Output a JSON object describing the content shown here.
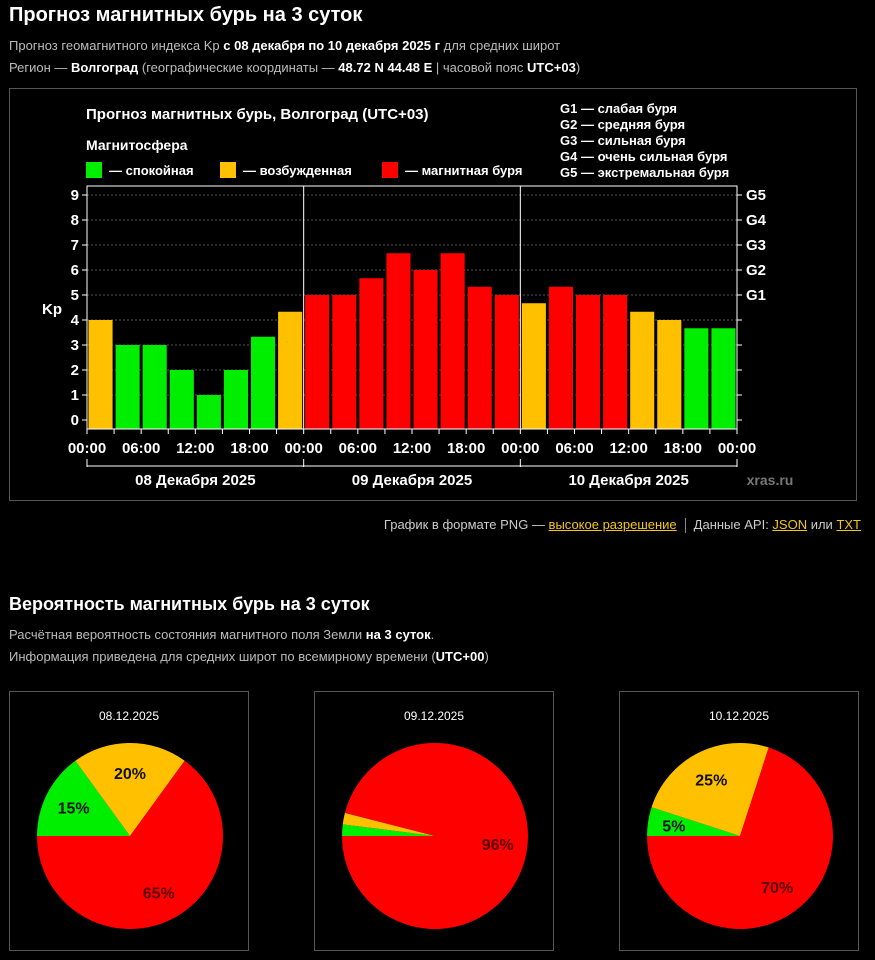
{
  "header": {
    "title": "Прогноз магнитных бурь на 3 суток",
    "line1_pre": "Прогноз геомагнитного индекса Kp ",
    "line1_bold": "с 08 декабря по 10 декабря 2025 г",
    "line1_post": " для средних широт",
    "line2_pre": "Регион — ",
    "line2_region": "Волгоград",
    "line2_mid": " (географические координаты — ",
    "line2_coords": "48.72 N 44.48 E",
    "line2_mid2": " | часовой пояс ",
    "line2_tz": "UTC+03",
    "line2_post": ")"
  },
  "colors": {
    "quiet": "#00ee00",
    "active": "#ffc000",
    "storm": "#ff0000"
  },
  "chart_data": [
    {
      "type": "bar",
      "title": "Прогноз магнитных бурь, Волгоград (UTC+03)",
      "legend_title": "Магнитосфера",
      "legend": [
        {
          "label": "— спокойная",
          "color": "#00ee00"
        },
        {
          "label": "— возбужденная",
          "color": "#ffc000"
        },
        {
          "label": "— магнитная буря",
          "color": "#ff0000"
        }
      ],
      "g_legend": [
        "G1 — слабая буря",
        "G2 — средняя буря",
        "G3 — сильная буря",
        "G4 — очень сильная буря",
        "G5 — экстремальная буря"
      ],
      "ylabel": "Kp",
      "ylim": [
        0,
        9
      ],
      "yticks": [
        "0",
        "1",
        "2",
        "3",
        "4",
        "5",
        "6",
        "7",
        "8",
        "9"
      ],
      "right_ticks": [
        {
          "kp": 5,
          "label": "G1"
        },
        {
          "kp": 6,
          "label": "G2"
        },
        {
          "kp": 7,
          "label": "G3"
        },
        {
          "kp": 8,
          "label": "G4"
        },
        {
          "kp": 9,
          "label": "G5"
        }
      ],
      "xticks": [
        "00:00",
        "06:00",
        "12:00",
        "18:00",
        "00:00",
        "06:00",
        "12:00",
        "18:00",
        "00:00",
        "06:00",
        "12:00",
        "18:00",
        "00:00"
      ],
      "days": [
        "08 Декабря 2025",
        "09 Декабря 2025",
        "10 Декабря 2025"
      ],
      "watermark": "xras.ru",
      "grid": true,
      "values": [
        4,
        3,
        3,
        2,
        1,
        2,
        3.33,
        4.33,
        5,
        5,
        5.67,
        6.67,
        6,
        6.67,
        5.33,
        5,
        4.67,
        5.33,
        5,
        5,
        4.33,
        4,
        3.67,
        3.67
      ],
      "states": [
        "active",
        "quiet",
        "quiet",
        "quiet",
        "quiet",
        "quiet",
        "quiet",
        "active",
        "storm",
        "storm",
        "storm",
        "storm",
        "storm",
        "storm",
        "storm",
        "storm",
        "active",
        "storm",
        "storm",
        "storm",
        "active",
        "active",
        "quiet",
        "quiet"
      ]
    },
    {
      "type": "pie",
      "title": "08.12.2025",
      "slices": [
        {
          "state": "quiet",
          "value": 15,
          "label": "15%"
        },
        {
          "state": "active",
          "value": 20,
          "label": "20%"
        },
        {
          "state": "storm",
          "value": 65,
          "label": "65%"
        }
      ]
    },
    {
      "type": "pie",
      "title": "09.12.2025",
      "slices": [
        {
          "state": "quiet",
          "value": 2,
          "label": ""
        },
        {
          "state": "active",
          "value": 2,
          "label": ""
        },
        {
          "state": "storm",
          "value": 96,
          "label": "96%"
        }
      ]
    },
    {
      "type": "pie",
      "title": "10.12.2025",
      "slices": [
        {
          "state": "quiet",
          "value": 5,
          "label": "5%"
        },
        {
          "state": "active",
          "value": 25,
          "label": "25%"
        },
        {
          "state": "storm",
          "value": 70,
          "label": "70%"
        }
      ]
    }
  ],
  "links": {
    "png_text": "График в формате PNG — ",
    "png_link": "высокое разрешение",
    "api_text": "Данные API: ",
    "json_link": "JSON",
    "or_text": " или ",
    "txt_link": "TXT"
  },
  "probability": {
    "title": "Вероятность магнитных бурь на 3 суток",
    "line1_pre": "Расчётная вероятность состояния магнитного поля Земли ",
    "line1_bold": "на 3 суток",
    "line1_post": ".",
    "line2_pre": "Информация приведена для средних широт по всемирному времени (",
    "line2_bold": "UTC+00",
    "line2_post": ")"
  }
}
